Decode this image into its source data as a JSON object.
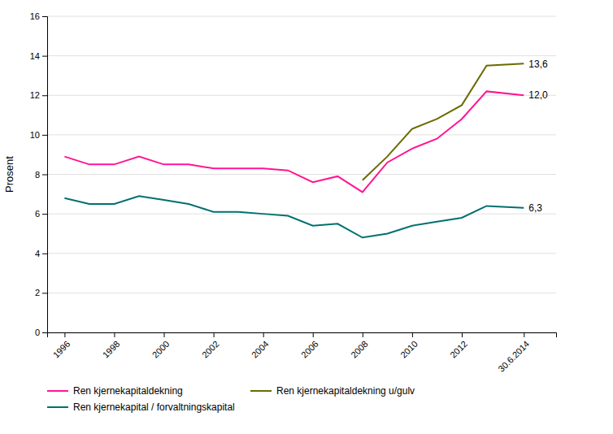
{
  "chart_data": {
    "type": "line",
    "y_label": "Prosent",
    "x": [
      1996,
      1997,
      1998,
      1999,
      2000,
      2001,
      2002,
      2003,
      2004,
      2005,
      2006,
      2007,
      2008,
      2009,
      2010,
      2011,
      2012,
      2013,
      2014.5
    ],
    "series": [
      {
        "name": "Ren kjernekapitaldekning",
        "color": "#FF1493",
        "values": [
          8.9,
          8.5,
          8.5,
          8.9,
          8.5,
          8.5,
          8.3,
          8.3,
          8.3,
          8.2,
          7.6,
          7.9,
          7.1,
          8.6,
          9.3,
          9.8,
          10.8,
          12.2,
          12.0
        ],
        "value_labels": [
          null,
          null,
          null,
          null,
          null,
          null,
          null,
          null,
          null,
          null,
          null,
          null,
          null,
          null,
          null,
          null,
          null,
          null,
          "12,0"
        ]
      },
      {
        "name": "Ren kjernekapitaldekning u/gulv",
        "color": "#6B6B00",
        "values": [
          null,
          null,
          null,
          null,
          null,
          null,
          null,
          null,
          null,
          null,
          null,
          null,
          7.7,
          8.9,
          10.3,
          10.8,
          11.5,
          13.5,
          13.6
        ],
        "value_labels": [
          null,
          null,
          null,
          null,
          null,
          null,
          null,
          null,
          null,
          null,
          null,
          null,
          null,
          null,
          null,
          null,
          null,
          null,
          "13,6"
        ]
      },
      {
        "name": "Ren kjernekapital / forvaltningskapital",
        "color": "#007070",
        "values": [
          6.8,
          6.5,
          6.5,
          6.9,
          6.7,
          6.5,
          6.1,
          6.1,
          6.0,
          5.9,
          5.4,
          5.5,
          4.8,
          5.0,
          5.4,
          5.6,
          5.8,
          6.4,
          6.3
        ],
        "value_labels": [
          null,
          null,
          null,
          null,
          null,
          null,
          null,
          null,
          null,
          null,
          null,
          null,
          null,
          null,
          null,
          null,
          null,
          null,
          "6,3"
        ]
      }
    ],
    "xlim": [
      1995.3,
      2015.8
    ],
    "xticks": [
      1996,
      1998,
      2000,
      2002,
      2004,
      2006,
      2008,
      2010,
      2012,
      {
        "value": 2014.5,
        "label": "30.6.2014"
      }
    ],
    "ylim": [
      0,
      16
    ],
    "yticks": [
      0,
      2,
      4,
      6,
      8,
      10,
      12,
      14,
      16
    ],
    "grid": true,
    "legend": "bottom"
  }
}
